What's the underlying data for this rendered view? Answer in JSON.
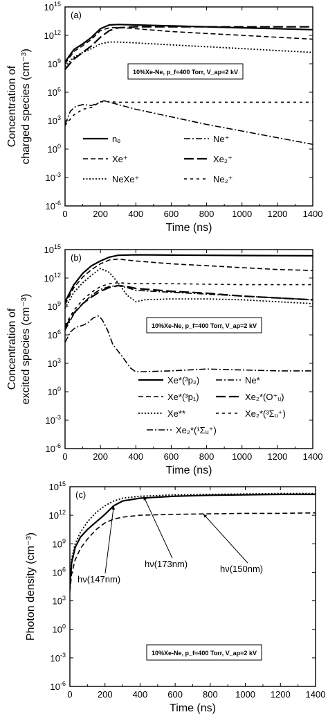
{
  "figure": {
    "annotation": "10%Xe-Ne, p_f=400 Torr, V_ap=2 kV"
  },
  "chart_data": [
    {
      "id": "a",
      "type": "line",
      "panel_label": "(a)",
      "xlabel": "Time (ns)",
      "ylabel": [
        "Concentration of",
        "charged species (cm⁻³)"
      ],
      "xlim": [
        0,
        1400
      ],
      "ylim_log10": [
        -6,
        15
      ],
      "y_scale": "log",
      "x_ticks": [
        0,
        200,
        400,
        600,
        800,
        1000,
        1200,
        1400
      ],
      "y_ticks_exp": [
        -6,
        -3,
        0,
        3,
        6,
        9,
        12,
        15
      ],
      "legend": [
        {
          "label": "nₑ",
          "style": "solid",
          "side": "left"
        },
        {
          "label": "Xe⁺",
          "style": "dash",
          "side": "left"
        },
        {
          "label": "NeXe⁺",
          "style": "dot",
          "side": "left"
        },
        {
          "label": "Ne⁺",
          "style": "dashdot",
          "side": "right"
        },
        {
          "label": "Xe₂⁺",
          "style": "longdash",
          "side": "right"
        },
        {
          "label": "Ne₂⁺",
          "style": "shortdash",
          "side": "right"
        }
      ],
      "series": [
        {
          "name": "nₑ",
          "style": "solid",
          "x": [
            0,
            50,
            100,
            150,
            200,
            250,
            300,
            400,
            600,
            800,
            1000,
            1200,
            1400
          ],
          "log10_y": [
            9.2,
            10.5,
            11.1,
            11.8,
            12.7,
            13.1,
            13.15,
            13.1,
            13.0,
            12.9,
            12.8,
            12.7,
            12.6
          ]
        },
        {
          "name": "Xe⁺",
          "style": "dash",
          "x": [
            0,
            50,
            100,
            150,
            200,
            250,
            300,
            400,
            600,
            800,
            1000,
            1200,
            1400
          ],
          "log10_y": [
            9.0,
            10.3,
            10.9,
            11.6,
            12.5,
            12.8,
            12.85,
            12.7,
            12.4,
            12.2,
            12.0,
            11.8,
            11.6
          ]
        },
        {
          "name": "NeXe⁺",
          "style": "dot",
          "x": [
            0,
            50,
            100,
            150,
            200,
            250,
            300,
            400,
            600,
            800,
            1000,
            1200,
            1400
          ],
          "log10_y": [
            8.7,
            9.7,
            10.2,
            10.6,
            11.1,
            11.3,
            11.3,
            11.2,
            11.0,
            10.8,
            10.6,
            10.4,
            10.2
          ]
        },
        {
          "name": "Ne⁺",
          "style": "dashdot",
          "x": [
            0,
            30,
            60,
            100,
            150,
            180,
            220,
            400,
            600,
            800,
            1000,
            1200,
            1400
          ],
          "log10_y": [
            2.6,
            4.0,
            4.5,
            4.7,
            4.6,
            4.8,
            5.1,
            4.2,
            3.4,
            2.6,
            1.9,
            1.2,
            0.5
          ]
        },
        {
          "name": "Xe₂⁺",
          "style": "longdash",
          "x": [
            0,
            50,
            100,
            150,
            200,
            250,
            300,
            400,
            600,
            800,
            1000,
            1200,
            1400
          ],
          "log10_y": [
            8.4,
            9.5,
            10.2,
            10.9,
            11.8,
            12.5,
            12.8,
            12.9,
            12.9,
            12.9,
            12.9,
            12.9,
            12.9
          ]
        },
        {
          "name": "Ne₂⁺",
          "style": "shortdash",
          "x": [
            0,
            50,
            100,
            150,
            200,
            250,
            300,
            400,
            600,
            800,
            1000,
            1200,
            1400
          ],
          "log10_y": [
            2.5,
            3.6,
            4.2,
            4.4,
            5.0,
            5.0,
            4.95,
            4.95,
            4.95,
            4.95,
            4.95,
            4.95,
            4.95
          ]
        }
      ]
    },
    {
      "id": "b",
      "type": "line",
      "panel_label": "(b)",
      "xlabel": "Time (ns)",
      "ylabel": [
        "Concentration of",
        "excited species (cm⁻³)"
      ],
      "xlim": [
        0,
        1400
      ],
      "ylim_log10": [
        -6,
        15
      ],
      "y_scale": "log",
      "x_ticks": [
        0,
        200,
        400,
        600,
        800,
        1000,
        1200,
        1400
      ],
      "y_ticks_exp": [
        -6,
        -3,
        0,
        3,
        6,
        9,
        12,
        15
      ],
      "legend": [
        {
          "label": "Xe*(³p₂)",
          "style": "solid",
          "side": "left"
        },
        {
          "label": "Xe*(³p₁)",
          "style": "dash",
          "side": "left"
        },
        {
          "label": "Xe**",
          "style": "dot",
          "side": "left"
        },
        {
          "label": "Xe₂*(¹Σᵤ⁺)",
          "style": "dashdot",
          "side": "bottom"
        },
        {
          "label": "Ne*",
          "style": "dashdot",
          "side": "right"
        },
        {
          "label": "Xe₂*(O⁺ᵤ)",
          "style": "longdash",
          "side": "right"
        },
        {
          "label": "Xe₂*(³Σᵤ⁺)",
          "style": "shortdash",
          "side": "right"
        }
      ],
      "series": [
        {
          "name": "Xe*(³p₂)",
          "style": "solid",
          "x": [
            0,
            50,
            100,
            150,
            200,
            250,
            300,
            400,
            600,
            800,
            1000,
            1200,
            1400
          ],
          "log10_y": [
            9.5,
            11.3,
            12.5,
            13.3,
            13.8,
            14.2,
            14.4,
            14.45,
            14.42,
            14.4,
            14.38,
            14.36,
            14.35
          ]
        },
        {
          "name": "Xe*(³p₁)",
          "style": "dash",
          "x": [
            0,
            50,
            100,
            150,
            200,
            250,
            300,
            400,
            600,
            800,
            1000,
            1200,
            1400
          ],
          "log10_y": [
            9.2,
            11.0,
            12.1,
            12.9,
            13.5,
            13.9,
            14.0,
            13.8,
            13.5,
            13.3,
            13.1,
            12.9,
            12.8
          ]
        },
        {
          "name": "Xe**",
          "style": "dot",
          "x": [
            0,
            50,
            100,
            150,
            200,
            250,
            300,
            350,
            400,
            450,
            600,
            800,
            1000,
            1200,
            1400
          ],
          "log10_y": [
            8.8,
            10.5,
            11.5,
            12.3,
            13.0,
            12.6,
            11.5,
            10.2,
            9.5,
            9.7,
            9.8,
            9.8,
            9.7,
            9.5,
            9.3
          ]
        },
        {
          "name": "Ne*",
          "style": "dashdot",
          "x": [
            0,
            30,
            60,
            100,
            130,
            160,
            190,
            210,
            240,
            270,
            320,
            370,
            400,
            600,
            800,
            1000,
            1200,
            1400
          ],
          "log10_y": [
            5.2,
            6.3,
            6.8,
            7.0,
            7.3,
            7.8,
            8.0,
            7.6,
            6.5,
            5.0,
            3.8,
            2.5,
            2.1,
            2.2,
            2.4,
            2.3,
            2.2,
            2.2
          ]
        },
        {
          "name": "Xe₂*(O⁺ᵤ)",
          "style": "longdash",
          "x": [
            0,
            50,
            100,
            150,
            200,
            250,
            300,
            350,
            400,
            600,
            800,
            1000,
            1200,
            1400
          ],
          "log10_y": [
            6.8,
            8.3,
            9.3,
            10.0,
            10.6,
            11.0,
            11.2,
            11.1,
            10.9,
            10.6,
            10.4,
            10.1,
            9.9,
            9.7
          ]
        },
        {
          "name": "Xe₂*(³Σᵤ⁺)",
          "style": "shortdash",
          "x": [
            0,
            50,
            100,
            150,
            200,
            250,
            300,
            350,
            400,
            600,
            800,
            1000,
            1200,
            1400
          ],
          "log10_y": [
            7.0,
            8.6,
            9.7,
            10.5,
            11.1,
            11.4,
            11.5,
            11.45,
            11.4,
            11.4,
            11.35,
            11.3,
            11.3,
            11.3
          ]
        },
        {
          "name": "Xe₂*(¹Σᵤ⁺)",
          "style": "dashdot",
          "x": [
            0,
            50,
            100,
            150,
            200,
            250,
            300,
            350,
            400,
            600,
            800,
            1000,
            1200,
            1400
          ],
          "log10_y": [
            6.5,
            8.2,
            9.3,
            10.2,
            10.8,
            11.1,
            11.2,
            11.0,
            10.7,
            10.5,
            10.3,
            10.1,
            9.9,
            9.7
          ]
        }
      ]
    },
    {
      "id": "c",
      "type": "line",
      "panel_label": "(c)",
      "xlabel": "Time (ns)",
      "ylabel": [
        "Photon density (cm⁻³)"
      ],
      "xlim": [
        0,
        1400
      ],
      "ylim_log10": [
        -6,
        15
      ],
      "y_scale": "log",
      "x_ticks": [
        0,
        200,
        400,
        600,
        800,
        1000,
        1200,
        1400
      ],
      "y_ticks_exp": [
        -6,
        -3,
        0,
        3,
        6,
        9,
        12,
        15
      ],
      "series": [
        {
          "name": "hν(147nm)",
          "style": "solid",
          "x": [
            0,
            10,
            30,
            60,
            100,
            150,
            200,
            250,
            300,
            400,
            600,
            800,
            1000,
            1200,
            1400
          ],
          "log10_y": [
            4.5,
            7.0,
            8.6,
            9.7,
            10.5,
            11.3,
            12.1,
            13.0,
            13.5,
            13.8,
            14.0,
            14.1,
            14.15,
            14.2,
            14.2
          ]
        },
        {
          "name": "hν(173nm)",
          "style": "dot",
          "x": [
            0,
            10,
            30,
            60,
            100,
            150,
            200,
            250,
            300,
            400,
            600,
            800,
            1000,
            1200,
            1400
          ],
          "log10_y": [
            5.0,
            7.4,
            9.0,
            10.2,
            11.3,
            12.3,
            13.0,
            13.5,
            13.8,
            14.0,
            14.15,
            14.2,
            14.25,
            14.3,
            14.3
          ]
        },
        {
          "name": "hν(150nm)",
          "style": "dash",
          "x": [
            0,
            10,
            30,
            60,
            100,
            150,
            200,
            250,
            300,
            400,
            600,
            800,
            1000,
            1200,
            1400
          ],
          "log10_y": [
            4.0,
            5.8,
            7.3,
            8.5,
            9.5,
            10.5,
            11.2,
            11.6,
            11.8,
            12.0,
            12.1,
            12.15,
            12.2,
            12.2,
            12.25
          ]
        }
      ],
      "photon_labels": [
        {
          "text": "hν(147nm)",
          "series": "hν(147nm)"
        },
        {
          "text": "hν(173nm)",
          "series": "hν(173nm)"
        },
        {
          "text": "hν(150nm)",
          "series": "hν(150nm)"
        }
      ]
    }
  ]
}
